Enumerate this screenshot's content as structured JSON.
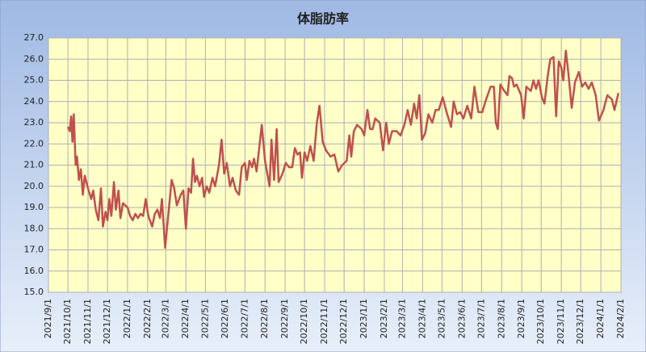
{
  "chart_data": {
    "type": "line",
    "title": "体脂肪率",
    "color": "#c0504d",
    "grid": true,
    "xlim": [
      "2021/9/1",
      "2024/2/1"
    ],
    "xticks": [
      "2021/9/1",
      "2021/10/1",
      "2021/11/1",
      "2021/12/1",
      "2022/1/1",
      "2022/2/1",
      "2022/3/1",
      "2022/4/1",
      "2022/5/1",
      "2022/6/1",
      "2022/7/1",
      "2022/8/1",
      "2022/9/1",
      "2022/10/1",
      "2022/11/1",
      "2022/12/1",
      "2023/1/1",
      "2023/2/1",
      "2023/3/1",
      "2023/4/1",
      "2023/5/1",
      "2023/6/1",
      "2023/7/1",
      "2023/8/1",
      "2023/9/1",
      "2023/10/1",
      "2023/11/1",
      "2023/12/1",
      "2024/1/1",
      "2024/2/1"
    ],
    "ylim": [
      15,
      27
    ],
    "yticks": [
      {
        "value": 15,
        "label": "15.0"
      },
      {
        "value": 16,
        "label": "16.0"
      },
      {
        "value": 17,
        "label": "17.0"
      },
      {
        "value": 18,
        "label": "18.0"
      },
      {
        "value": 19,
        "label": "19.0"
      },
      {
        "value": 20,
        "label": "20.0"
      },
      {
        "value": 21,
        "label": "21.0"
      },
      {
        "value": 22,
        "label": "22.0"
      },
      {
        "value": 23,
        "label": "23.0"
      },
      {
        "value": 24,
        "label": "24.0"
      },
      {
        "value": 25,
        "label": "25.0"
      },
      {
        "value": 26,
        "label": "26.0"
      },
      {
        "value": 27,
        "label": "27.0"
      }
    ],
    "x": [
      "2021/10/1",
      "2021/10/4",
      "2021/10/6",
      "2021/10/8",
      "2021/10/10",
      "2021/10/13",
      "2021/10/15",
      "2021/10/18",
      "2021/10/21",
      "2021/10/24",
      "2021/10/27",
      "2021/11/1",
      "2021/11/6",
      "2021/11/9",
      "2021/11/13",
      "2021/11/17",
      "2021/11/21",
      "2021/11/24",
      "2021/11/28",
      "2021/12/1",
      "2021/12/4",
      "2021/12/7",
      "2021/12/11",
      "2021/12/14",
      "2021/12/18",
      "2021/12/21",
      "2021/12/25",
      "2022/1/1",
      "2022/1/5",
      "2022/1/9",
      "2022/1/13",
      "2022/1/17",
      "2022/1/21",
      "2022/1/25",
      "2022/1/29",
      "2022/2/2",
      "2022/2/8",
      "2022/2/12",
      "2022/2/16",
      "2022/2/20",
      "2022/2/23",
      "2022/2/28",
      "2022/3/4",
      "2022/3/10",
      "2022/3/14",
      "2022/3/18",
      "2022/3/24",
      "2022/3/28",
      "2022/4/1",
      "2022/4/5",
      "2022/4/9",
      "2022/4/12",
      "2022/4/15",
      "2022/4/18",
      "2022/4/22",
      "2022/4/26",
      "2022/4/29",
      "2022/5/3",
      "2022/5/7",
      "2022/5/12",
      "2022/5/16",
      "2022/5/22",
      "2022/5/26",
      "2022/5/30",
      "2022/6/3",
      "2022/6/8",
      "2022/6/12",
      "2022/6/17",
      "2022/6/22",
      "2022/6/26",
      "2022/7/1",
      "2022/7/4",
      "2022/7/8",
      "2022/7/12",
      "2022/7/15",
      "2022/7/19",
      "2022/7/23",
      "2022/7/27",
      "2022/8/1",
      "2022/8/8",
      "2022/8/11",
      "2022/8/15",
      "2022/8/19",
      "2022/8/22",
      "2022/8/28",
      "2022/9/2",
      "2022/9/7",
      "2022/9/12",
      "2022/9/16",
      "2022/9/20",
      "2022/9/24",
      "2022/9/27",
      "2022/10/1",
      "2022/10/5",
      "2022/10/10",
      "2022/10/15",
      "2022/10/20",
      "2022/10/24",
      "2022/10/29",
      "2022/11/3",
      "2022/11/10",
      "2022/11/16",
      "2022/11/22",
      "2022/11/28",
      "2022/12/5",
      "2022/12/9",
      "2022/12/12",
      "2022/12/16",
      "2022/12/21",
      "2022/12/28",
      "2023/1/1",
      "2023/1/6",
      "2023/1/10",
      "2023/1/14",
      "2023/1/18",
      "2023/1/25",
      "2023/1/30",
      "2023/2/4",
      "2023/2/8",
      "2023/2/13",
      "2023/2/20",
      "2023/2/26",
      "2023/3/4",
      "2023/3/9",
      "2023/3/14",
      "2023/3/19",
      "2023/3/23",
      "2023/3/27",
      "2023/3/31",
      "2023/4/5",
      "2023/4/10",
      "2023/4/16",
      "2023/4/21",
      "2023/4/26",
      "2023/5/2",
      "2023/5/8",
      "2023/5/15",
      "2023/5/19",
      "2023/5/24",
      "2023/5/29",
      "2023/6/3",
      "2023/6/9",
      "2023/6/15",
      "2023/6/20",
      "2023/6/26",
      "2023/7/2",
      "2023/7/8",
      "2023/7/15",
      "2023/7/20",
      "2023/7/23",
      "2023/7/26",
      "2023/7/30",
      "2023/8/5",
      "2023/8/10",
      "2023/8/13",
      "2023/8/17",
      "2023/8/20",
      "2023/8/24",
      "2023/8/31",
      "2023/9/4",
      "2023/9/8",
      "2023/9/15",
      "2023/9/19",
      "2023/9/23",
      "2023/9/27",
      "2023/10/2",
      "2023/10/6",
      "2023/10/11",
      "2023/10/15",
      "2023/10/20",
      "2023/10/24",
      "2023/10/28",
      "2023/11/1",
      "2023/11/4",
      "2023/11/8",
      "2023/11/12",
      "2023/11/17",
      "2023/11/22",
      "2023/11/28",
      "2023/12/3",
      "2023/12/8",
      "2023/12/13",
      "2023/12/18",
      "2023/12/24",
      "2023/12/29",
      "2024/1/5",
      "2024/1/11",
      "2024/1/18",
      "2024/1/22",
      "2024/1/28"
    ],
    "values": [
      22.8,
      22.6,
      23.3,
      22.1,
      23.4,
      21.0,
      21.4,
      20.3,
      20.8,
      19.6,
      20.5,
      19.9,
      19.4,
      19.8,
      18.9,
      18.4,
      19.9,
      18.1,
      18.8,
      18.4,
      19.4,
      18.6,
      20.2,
      18.9,
      19.8,
      18.5,
      19.2,
      19.0,
      18.6,
      18.4,
      18.7,
      18.5,
      18.7,
      18.6,
      19.4,
      18.6,
      18.1,
      18.7,
      18.9,
      18.5,
      19.4,
      17.1,
      18.4,
      20.3,
      19.9,
      19.1,
      19.6,
      19.8,
      18.0,
      19.9,
      19.7,
      21.3,
      20.2,
      20.5,
      20.0,
      20.4,
      19.5,
      20.0,
      19.7,
      20.4,
      20.0,
      21.0,
      22.2,
      20.6,
      21.1,
      20.0,
      20.4,
      19.8,
      19.6,
      20.9,
      21.1,
      20.3,
      21.2,
      20.9,
      21.3,
      20.7,
      21.8,
      22.9,
      21.2,
      20.0,
      22.2,
      20.3,
      22.7,
      20.2,
      20.6,
      21.1,
      20.9,
      20.9,
      21.8,
      21.5,
      21.6,
      20.4,
      21.6,
      21.2,
      21.9,
      21.2,
      23.0,
      23.8,
      22.1,
      21.7,
      21.4,
      21.5,
      20.7,
      21.0,
      21.2,
      22.4,
      21.4,
      22.6,
      22.9,
      22.7,
      22.4,
      23.6,
      22.7,
      22.7,
      23.2,
      23.0,
      21.7,
      23.0,
      22.0,
      22.6,
      22.6,
      22.4,
      22.9,
      23.6,
      22.9,
      23.9,
      23.2,
      24.3,
      22.2,
      22.5,
      23.4,
      23.0,
      23.6,
      23.6,
      24.2,
      23.5,
      22.8,
      24.0,
      23.4,
      23.5,
      23.2,
      23.8,
      23.2,
      24.7,
      23.5,
      23.5,
      24.1,
      24.7,
      24.7,
      23.0,
      22.7,
      24.8,
      24.5,
      24.3,
      25.2,
      25.1,
      24.7,
      24.8,
      24.3,
      23.2,
      24.7,
      24.5,
      25.0,
      24.6,
      25.0,
      24.2,
      23.9,
      25.2,
      26.0,
      26.1,
      23.3,
      25.9,
      25.6,
      25.0,
      26.4,
      25.3,
      23.7,
      24.9,
      25.4,
      24.7,
      24.9,
      24.6,
      24.9,
      24.3,
      23.1,
      23.6,
      24.3,
      24.1,
      23.6,
      24.4
    ]
  }
}
